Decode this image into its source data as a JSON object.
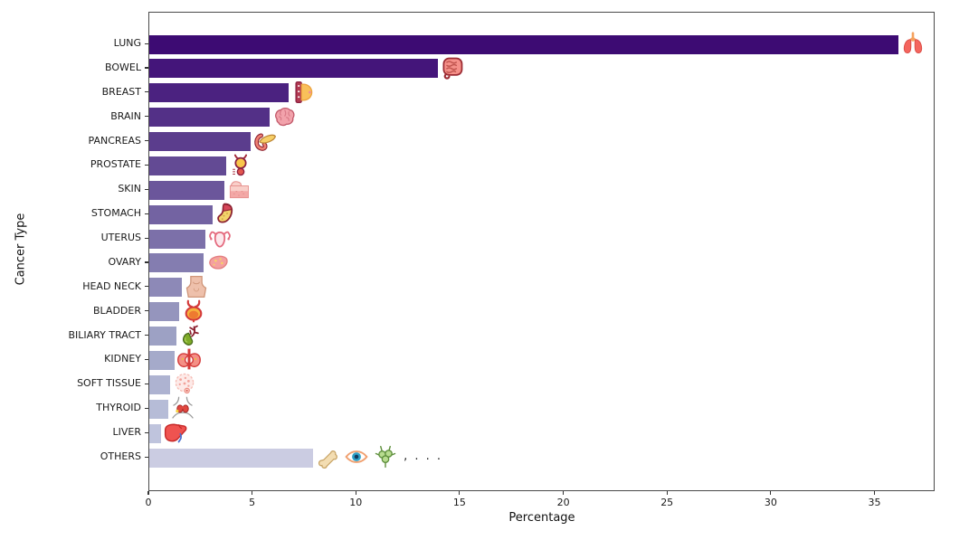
{
  "chart_data": {
    "type": "bar",
    "orientation": "horizontal",
    "title": "",
    "xlabel": "Percentage",
    "ylabel": "Cancer Type",
    "xlim": [
      0,
      37.9
    ],
    "xticks": [
      0,
      5,
      10,
      15,
      20,
      25,
      30,
      35
    ],
    "grid": false,
    "legend": "none",
    "categories": [
      "LUNG",
      "BOWEL",
      "BREAST",
      "BRAIN",
      "PANCREAS",
      "PROSTATE",
      "SKIN",
      "STOMACH",
      "UTERUS",
      "OVARY",
      "HEAD NECK",
      "BLADDER",
      "BILIARY TRACT",
      "KIDNEY",
      "SOFT TISSUE",
      "THYROID",
      "LIVER",
      "OTHERS"
    ],
    "values": [
      36.1,
      13.9,
      6.7,
      5.8,
      4.9,
      3.7,
      3.6,
      3.05,
      2.7,
      2.6,
      1.55,
      1.45,
      1.3,
      1.2,
      1.0,
      0.9,
      0.55,
      7.9
    ],
    "bar_colors": [
      "#3d0b73",
      "#44157a",
      "#4b2280",
      "#533087",
      "#5b3d8d",
      "#634a94",
      "#6b569b",
      "#7363a2",
      "#7c70a9",
      "#847db0",
      "#8d89b7",
      "#9595bd",
      "#9da1c4",
      "#a5aaca",
      "#aeb3d1",
      "#b6bcd7",
      "#bfc4dd",
      "#cbcce2"
    ],
    "icons": [
      [
        "lungs-icon"
      ],
      [
        "bowel-icon"
      ],
      [
        "breast-icon"
      ],
      [
        "brain-icon"
      ],
      [
        "pancreas-icon"
      ],
      [
        "prostate-icon"
      ],
      [
        "skin-icon"
      ],
      [
        "stomach-icon"
      ],
      [
        "uterus-icon"
      ],
      [
        "ovary-icon"
      ],
      [
        "head-neck-icon"
      ],
      [
        "bladder-icon"
      ],
      [
        "biliary-tract-icon"
      ],
      [
        "kidney-icon"
      ],
      [
        "soft-tissue-icon"
      ],
      [
        "thyroid-icon"
      ],
      [
        "liver-icon"
      ],
      [
        "bone-icon",
        "eye-icon",
        "lymph-nodes-icon"
      ]
    ],
    "others_more_text": ", . . .",
    "axis_color": "#4a4a4a",
    "background_color": "#ffffff"
  }
}
